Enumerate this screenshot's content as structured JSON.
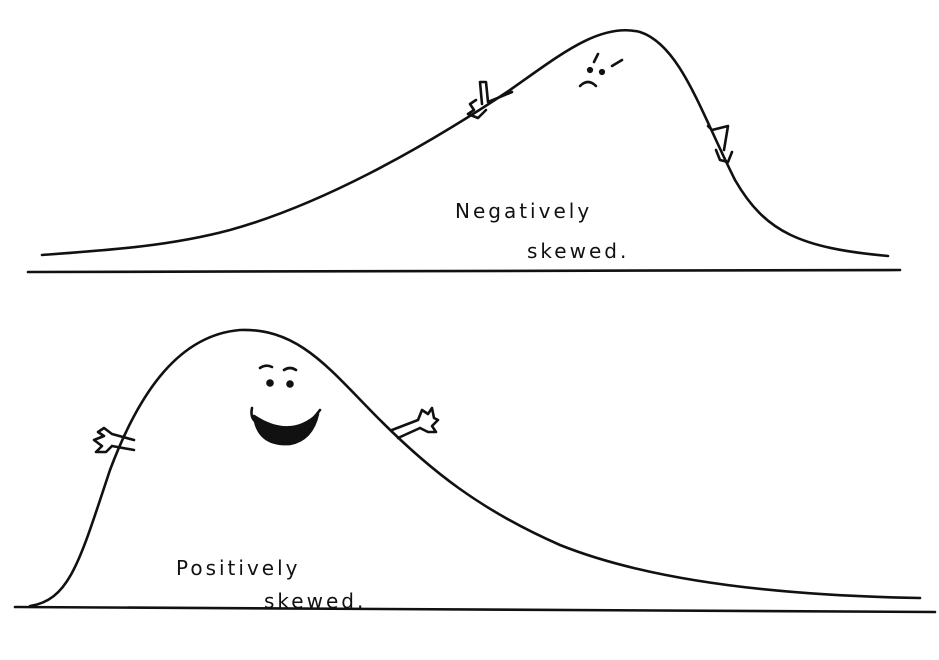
{
  "panels": [
    {
      "name": "negative-skew",
      "label_lines": [
        "Negatively",
        "skewed."
      ],
      "mood": "frowning",
      "colors": {
        "ink": "#111111",
        "paper": "#ffffff"
      }
    },
    {
      "name": "positive-skew",
      "label_lines": [
        "Positively",
        "skewed."
      ],
      "mood": "smiling",
      "colors": {
        "ink": "#111111",
        "paper": "#ffffff"
      }
    }
  ]
}
